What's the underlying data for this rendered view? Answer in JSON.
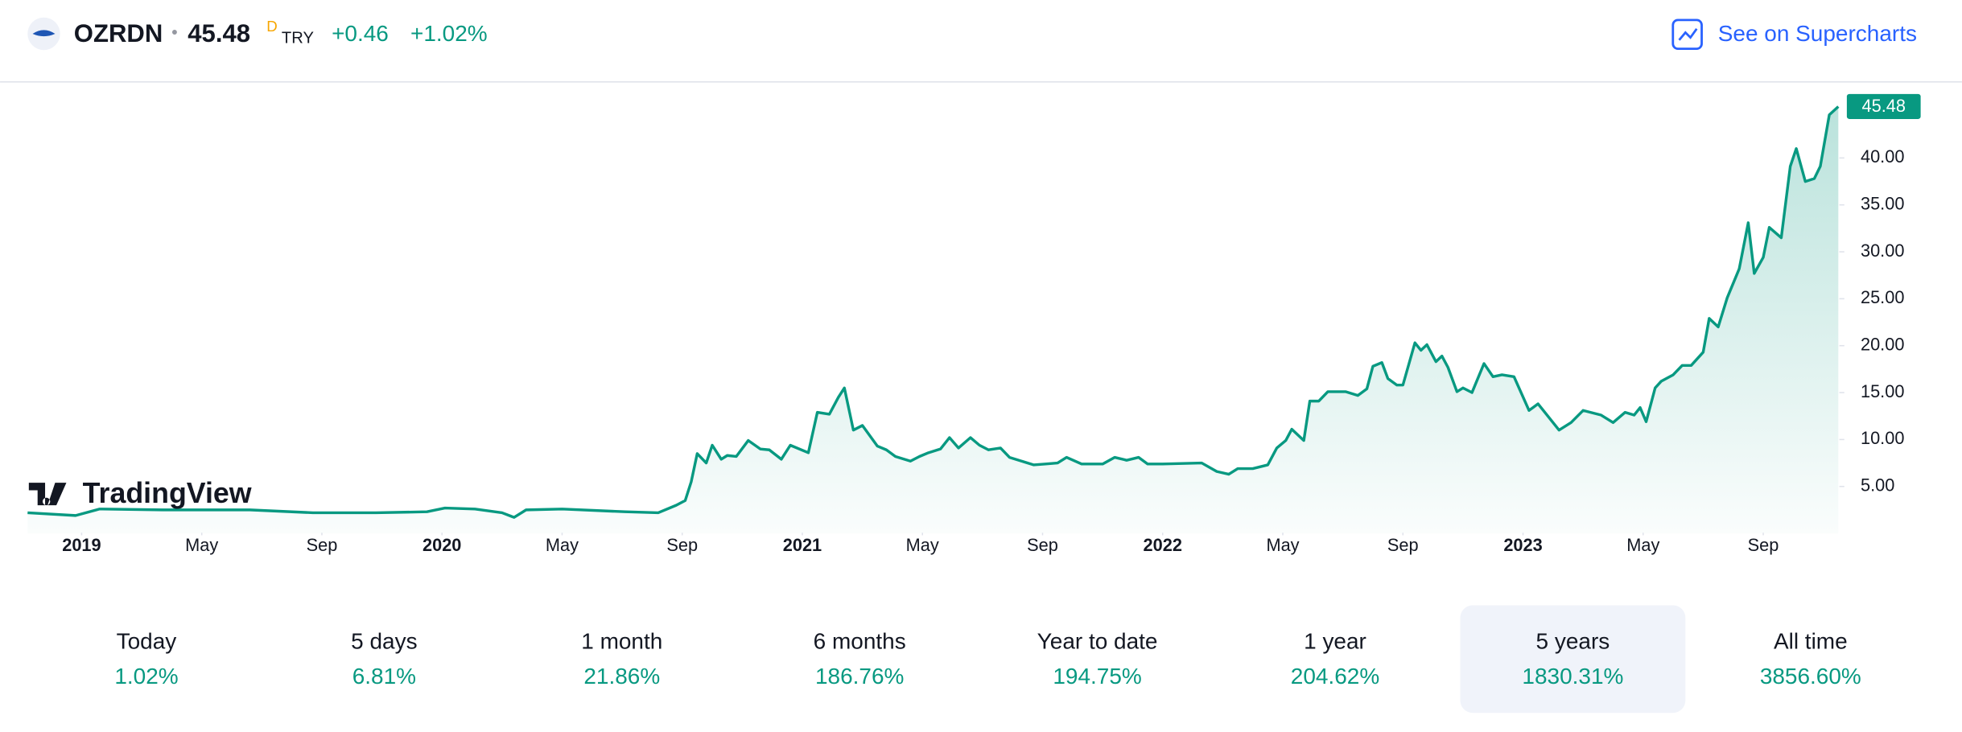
{
  "header": {
    "symbol": "OZRDN",
    "separator": "•",
    "price": "45.48",
    "flag": "D",
    "currency": "TRY",
    "change": "+0.46",
    "change_pct": "+1.02%",
    "link": "See on Supercharts"
  },
  "logo": "TradingView",
  "chart_data": {
    "type": "line",
    "x": [
      -1.8,
      -0.2,
      0.6,
      2.7,
      5.6,
      7.7,
      9.8,
      11.5,
      12.1,
      13.1,
      14.0,
      14.4,
      14.8,
      16.0,
      18.1,
      19.2,
      19.8,
      20.1,
      20.3,
      20.5,
      20.8,
      21.0,
      21.3,
      21.5,
      21.8,
      22.2,
      22.6,
      22.9,
      23.3,
      23.6,
      24.2,
      24.5,
      24.9,
      25.2,
      25.4,
      25.7,
      26.0,
      26.5,
      26.8,
      27.1,
      27.6,
      27.9,
      28.2,
      28.6,
      28.9,
      29.2,
      29.6,
      29.9,
      30.2,
      30.6,
      30.9,
      31.3,
      31.7,
      32.1,
      32.5,
      32.8,
      33.3,
      34.0,
      34.4,
      34.8,
      35.2,
      35.5,
      36.0,
      37.3,
      37.8,
      38.2,
      38.5,
      39.0,
      39.5,
      39.8,
      40.1,
      40.3,
      40.7,
      40.9,
      41.2,
      41.5,
      42.1,
      42.5,
      42.8,
      43.0,
      43.3,
      43.5,
      43.8,
      44.0,
      44.4,
      44.6,
      44.8,
      45.1,
      45.3,
      45.5,
      45.8,
      46.0,
      46.3,
      46.7,
      47.0,
      47.3,
      47.7,
      48.2,
      48.5,
      49.2,
      49.6,
      50.0,
      50.6,
      51.0,
      51.4,
      51.7,
      51.9,
      52.1,
      52.4,
      52.6,
      53.0,
      53.3,
      53.6,
      54.0,
      54.2,
      54.5,
      54.8,
      55.2,
      55.5,
      55.7,
      56.0,
      56.2,
      56.6,
      56.9,
      57.1,
      57.4,
      57.7,
      57.9,
      58.2,
      58.5
    ],
    "series": [
      {
        "name": "OZRDN",
        "color": "#089981",
        "values": [
          2.2,
          1.9,
          2.6,
          2.5,
          2.5,
          2.2,
          2.2,
          2.3,
          2.7,
          2.6,
          2.2,
          1.7,
          2.5,
          2.6,
          2.3,
          2.2,
          3.0,
          3.5,
          5.5,
          8.5,
          7.5,
          9.4,
          7.9,
          8.3,
          8.2,
          9.9,
          9.0,
          8.9,
          7.9,
          9.4,
          8.6,
          12.9,
          12.7,
          14.5,
          15.5,
          11.0,
          11.5,
          9.3,
          8.9,
          8.2,
          7.7,
          8.2,
          8.6,
          9.0,
          10.2,
          9.1,
          10.2,
          9.4,
          8.9,
          9.1,
          8.1,
          7.7,
          7.3,
          7.4,
          7.5,
          8.1,
          7.4,
          7.4,
          8.1,
          7.8,
          8.1,
          7.4,
          7.4,
          7.5,
          6.6,
          6.3,
          6.9,
          6.9,
          7.3,
          9.1,
          9.9,
          11.1,
          9.9,
          14.1,
          14.1,
          15.1,
          15.1,
          14.7,
          15.4,
          17.8,
          18.2,
          16.5,
          15.8,
          15.8,
          20.3,
          19.5,
          20.1,
          18.3,
          18.9,
          17.7,
          15.1,
          15.5,
          15.0,
          18.1,
          16.7,
          16.9,
          16.7,
          13.1,
          13.8,
          11.0,
          11.8,
          13.1,
          12.6,
          11.8,
          12.9,
          12.6,
          13.4,
          11.9,
          15.5,
          16.2,
          16.9,
          17.9,
          17.9,
          19.3,
          22.9,
          22.0,
          25.1,
          28.2,
          33.1,
          27.7,
          29.4,
          32.6,
          31.5,
          39.1,
          41.0,
          37.5,
          37.8,
          39.1,
          44.6,
          45.48
        ]
      }
    ],
    "xlim": [
      -1.8,
      58.5
    ],
    "xticks": [
      {
        "value": 0,
        "label": "2019"
      },
      {
        "value": 4,
        "label": "May"
      },
      {
        "value": 8,
        "label": "Sep"
      },
      {
        "value": 12,
        "label": "2020"
      },
      {
        "value": 16,
        "label": "May"
      },
      {
        "value": 20,
        "label": "Sep"
      },
      {
        "value": 24,
        "label": "2021"
      },
      {
        "value": 28,
        "label": "May"
      },
      {
        "value": 32,
        "label": "Sep"
      },
      {
        "value": 36,
        "label": "2022"
      },
      {
        "value": 40,
        "label": "May"
      },
      {
        "value": 44,
        "label": "Sep"
      },
      {
        "value": 48,
        "label": "2023"
      },
      {
        "value": 52,
        "label": "May"
      },
      {
        "value": 56,
        "label": "Sep"
      }
    ],
    "ylim": [
      0,
      47.5
    ],
    "yticks": [
      {
        "value": 5,
        "label": "5.00"
      },
      {
        "value": 10,
        "label": "10.00"
      },
      {
        "value": 15,
        "label": "15.00"
      },
      {
        "value": 20,
        "label": "20.00"
      },
      {
        "value": 25,
        "label": "25.00"
      },
      {
        "value": 30,
        "label": "30.00"
      },
      {
        "value": 35,
        "label": "35.00"
      },
      {
        "value": 40,
        "label": "40.00"
      }
    ]
  },
  "periods": [
    {
      "label": "Today",
      "value": "1.02%"
    },
    {
      "label": "5 days",
      "value": "6.81%"
    },
    {
      "label": "1 month",
      "value": "21.86%"
    },
    {
      "label": "6 months",
      "value": "186.76%"
    },
    {
      "label": "Year to date",
      "value": "194.75%"
    },
    {
      "label": "1 year",
      "value": "204.62%"
    },
    {
      "label": "5 years",
      "value": "1830.31%",
      "selected": true
    },
    {
      "label": "All time",
      "value": "3856.60%"
    }
  ]
}
